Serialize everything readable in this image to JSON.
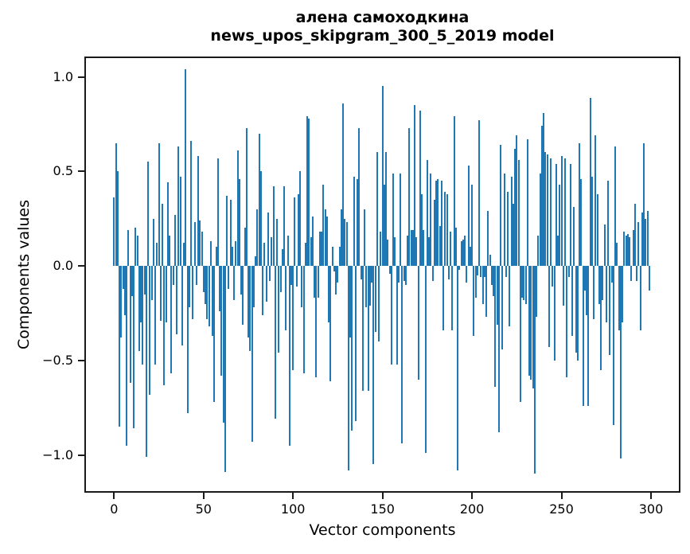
{
  "title": {
    "line1": "алена самоходкина",
    "line2": "news_upos_skipgram_300_5_2019 model"
  },
  "axes": {
    "xlabel": "Vector components",
    "ylabel": "Components values",
    "x_ticks": [
      {
        "label": "0",
        "value": 0
      },
      {
        "label": "50",
        "value": 50
      },
      {
        "label": "100",
        "value": 100
      },
      {
        "label": "150",
        "value": 150
      },
      {
        "label": "200",
        "value": 200
      },
      {
        "label": "250",
        "value": 250
      },
      {
        "label": "300",
        "value": 300
      }
    ],
    "y_ticks": [
      {
        "label": "1.0",
        "value": 1.0
      },
      {
        "label": "0.5",
        "value": 0.5
      },
      {
        "label": "0.0",
        "value": 0.0
      },
      {
        "label": "−0.5",
        "value": -0.5
      },
      {
        "label": "−1.0",
        "value": -1.0
      }
    ]
  },
  "colors": {
    "bar": "#1f77b4",
    "spine": "#1a1a1a",
    "text": "#000000"
  },
  "chart_data": {
    "type": "bar",
    "title": "алена самоходкина\nnews_upos_skipgram_300_5_2019 model",
    "xlabel": "Vector components",
    "ylabel": "Components values",
    "x_range": [
      0,
      299
    ],
    "xlim": [
      -16,
      317
    ],
    "ylim": [
      -1.19,
      1.1
    ],
    "grid": false,
    "legend": "none",
    "n_components": 300,
    "values": [
      0.36,
      0.65,
      0.5,
      -0.85,
      -0.38,
      -0.12,
      -0.26,
      -0.95,
      0.19,
      -0.62,
      -0.16,
      -0.86,
      0.2,
      0.16,
      -0.45,
      -0.3,
      -0.52,
      -0.15,
      -1.01,
      0.55,
      -0.68,
      -0.18,
      0.25,
      -0.52,
      0.12,
      0.65,
      -0.29,
      0.33,
      -0.63,
      -0.3,
      0.44,
      0.16,
      -0.57,
      -0.1,
      0.27,
      -0.36,
      0.63,
      0.47,
      -0.42,
      0.12,
      1.04,
      -0.78,
      -0.22,
      0.66,
      -0.28,
      0.23,
      -0.1,
      0.58,
      0.24,
      0.18,
      -0.14,
      -0.2,
      -0.28,
      -0.32,
      0.13,
      -0.37,
      -0.72,
      0.1,
      0.57,
      -0.24,
      -0.58,
      -0.83,
      -1.09,
      0.37,
      -0.12,
      0.35,
      0.1,
      -0.18,
      0.13,
      0.61,
      0.46,
      -0.15,
      -0.31,
      0.2,
      0.73,
      -0.38,
      -0.45,
      -0.93,
      -0.22,
      0.05,
      0.3,
      0.7,
      0.5,
      -0.26,
      0.12,
      -0.19,
      0.28,
      -0.08,
      0.15,
      0.42,
      -0.81,
      0.25,
      -0.46,
      -0.14,
      0.09,
      0.42,
      -0.34,
      0.16,
      -0.95,
      -0.1,
      -0.55,
      0.36,
      -0.11,
      0.38,
      0.5,
      -0.22,
      -0.57,
      0.12,
      0.79,
      0.78,
      0.15,
      0.26,
      -0.17,
      -0.59,
      -0.17,
      0.18,
      0.18,
      0.43,
      0.3,
      0.26,
      -0.3,
      -0.61,
      0.1,
      -0.03,
      -0.15,
      -0.09,
      0.1,
      0.3,
      0.86,
      0.25,
      0.23,
      -1.08,
      -0.38,
      -0.87,
      0.47,
      -0.82,
      0.46,
      0.73,
      -0.07,
      -0.66,
      0.3,
      -0.22,
      -0.66,
      -0.21,
      -0.09,
      -1.05,
      -0.35,
      0.6,
      -0.4,
      0.18,
      0.95,
      0.43,
      0.6,
      0.14,
      -0.04,
      -0.52,
      0.49,
      0.15,
      -0.52,
      -0.09,
      0.49,
      -0.94,
      -0.08,
      -0.1,
      0.16,
      0.73,
      0.19,
      0.19,
      0.85,
      0.15,
      -0.6,
      0.82,
      0.38,
      0.19,
      -0.99,
      0.56,
      0.15,
      0.49,
      -0.08,
      0.35,
      0.45,
      0.46,
      0.21,
      0.45,
      -0.34,
      0.39,
      0.38,
      -0.07,
      0.18,
      -0.34,
      0.79,
      0.2,
      -1.08,
      -0.02,
      0.13,
      0.14,
      0.16,
      -0.09,
      0.53,
      0.1,
      0.43,
      -0.37,
      -0.17,
      -0.05,
      0.77,
      -0.06,
      -0.2,
      -0.06,
      -0.27,
      0.29,
      0.06,
      -0.1,
      -0.16,
      -0.64,
      -0.31,
      -0.88,
      0.64,
      -0.44,
      0.49,
      -0.06,
      0.39,
      -0.32,
      0.47,
      0.33,
      0.62,
      0.69,
      0.56,
      -0.72,
      -0.17,
      -0.18,
      -0.2,
      0.67,
      -0.58,
      -0.6,
      -0.65,
      -1.1,
      -0.27,
      0.16,
      0.49,
      0.74,
      0.81,
      0.6,
      0.59,
      -0.43,
      0.57,
      -0.11,
      -0.5,
      0.54,
      0.16,
      0.43,
      0.58,
      -0.21,
      0.57,
      -0.59,
      -0.06,
      0.54,
      -0.37,
      0.31,
      -0.46,
      -0.5,
      0.65,
      0.46,
      -0.74,
      -0.13,
      -0.26,
      -0.74,
      0.89,
      0.47,
      -0.28,
      0.69,
      0.38,
      -0.2,
      -0.55,
      -0.18,
      0.22,
      -0.3,
      0.45,
      -0.47,
      -0.09,
      -0.84,
      0.63,
      0.12,
      -0.34,
      -1.02,
      -0.3,
      0.18,
      0.16,
      0.17,
      0.15,
      -0.08,
      0.19,
      0.33,
      -0.08,
      0.23,
      -0.34,
      0.28,
      0.65,
      0.25,
      0.29,
      -0.13
    ]
  }
}
